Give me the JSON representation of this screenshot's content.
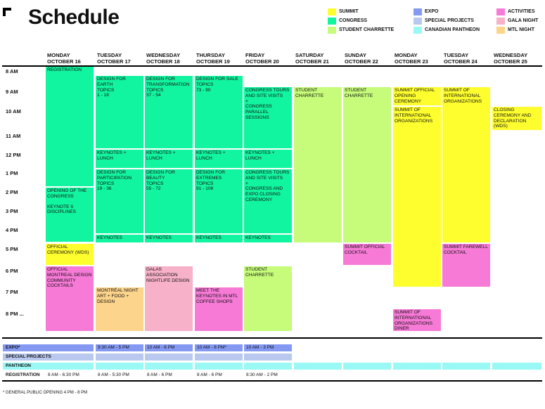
{
  "title": "Schedule",
  "legend": [
    {
      "label": "SUMMIT",
      "color": "#fefe2e"
    },
    {
      "label": "CONGRESS",
      "color": "#12f5a0"
    },
    {
      "label": "STUDENT CHARRETTE",
      "color": "#c6fc7a"
    },
    {
      "label": "EXPO",
      "color": "#8599f2"
    },
    {
      "label": "SPECIAL PROJECTS",
      "color": "#b8c8ef"
    },
    {
      "label": "CANADIAN PANTHEON",
      "color": "#9bf9f5"
    },
    {
      "label": "ACTIVITIES",
      "color": "#f77ad7"
    },
    {
      "label": "GALA NIGHT",
      "color": "#f7b1c8"
    },
    {
      "label": "MTL NIGHT",
      "color": "#fdd48b"
    }
  ],
  "days": [
    {
      "d": "MONDAY",
      "date": "OCTOBER 16"
    },
    {
      "d": "TUESDAY",
      "date": "OCTOBER 17"
    },
    {
      "d": "WEDNESDAY",
      "date": "OCTOBER 18"
    },
    {
      "d": "THURSDAY",
      "date": "OCTOBER 19"
    },
    {
      "d": "FRIDAY",
      "date": "OCTOBER 20"
    },
    {
      "d": "SATURDAY",
      "date": "OCTOBER 21"
    },
    {
      "d": "SUNDAY",
      "date": "OCTOBER 22"
    },
    {
      "d": "MONDAY",
      "date": "OCTOBER 23"
    },
    {
      "d": "TUESDAY",
      "date": "OCTOBER 24"
    },
    {
      "d": "WEDNESDAY",
      "date": "OCTOBER 25"
    }
  ],
  "times": [
    "8 AM",
    "9 AM",
    "10 AM",
    "11 AM",
    "12 PM",
    "1 PM",
    "2 PM",
    "3 PM",
    "4 PM",
    "5 PM",
    "6 PM",
    "7 PM",
    "8 PM ..."
  ],
  "events": {
    "registration": "REGISTRATION",
    "opening": "OPENING OF THE CONGRESS",
    "keynote6": "KEYNOTE 6 DISCIPLINES",
    "official_ceremony": "OFFICIAL CEREMONY (WDS)",
    "official_cocktails": "OFFICIAL MONTREAL DESIGN COMMUNITY COCKTAILS",
    "earth_title": "DESIGN FOR EARTH",
    "earth_topics": "TOPICS",
    "earth_range": "1 - 18",
    "transf_title": "DESIGN FOR TRANSFORMATION",
    "transf_topics": "TOPICS",
    "transf_range": "37 - 54",
    "sale_title": "DESIGN FOR SALE",
    "sale_topics": "TOPICS",
    "sale_range": "73 - 90",
    "tours1_title": "CONGRESS TOURS AND SITE VISITS",
    "tours1_plus": "+",
    "tours1_sub": "CONGRESS PARALLEL SESSIONS",
    "keynotes_lunch": "KEYNOTES + LUNCH",
    "part_title": "DESIGN FOR PARTICIPATION",
    "part_topics": "TOPICS",
    "part_range": "19 - 36",
    "beauty_title": "DESIGN FOR BEAUTY",
    "beauty_topics": "TOPICS",
    "beauty_range": "55 - 72",
    "extremes_title": "DESIGN FOR EXTREMES",
    "extremes_topics": "TOPICS",
    "extremes_range": "91 - 108",
    "tours2_title": "CONGRESS TOURS AND SITE VISITS",
    "tours2_plus": "+",
    "tours2_sub": "CONGRESS AND EXPO CLOSING CEREMONY",
    "keynotes": "KEYNOTES",
    "student_charrette": "STUDENT CHARRETTE",
    "mtl_night": "MONTRÉAL NIGHT ART + FOOD + DESIGN",
    "galas": "GALAS ASSOCIATION NIGHTLIFE DESIGN",
    "meet_keynotes": "MEET THE KEYNOTES IN MTL COFFEE SHOPS",
    "summit_cocktail": "SUMMIT OFFICIAL COCKTAIL",
    "summit_opening": "SUMMIT OFFICIAL OPENING CEREMONY",
    "summit_intl": "SUMMIT OF INTERNATIONAL ORGANIZATIONS",
    "summit_intl_diner": "SUMMIT OF INTERNATIONAL ORGANIZATIONS DINER",
    "summit_intl2": "SUMMIT OF INTERNATIONAL ORGANIZATIONS",
    "farewell": "SUMMIT FAREWELL COCKTAIL",
    "closing": "CLOSING CEREMONY AND DECLARATION (WDS)"
  },
  "bottom": {
    "rows": [
      "EXPO*",
      "SPECIAL PROJECTS",
      "PANTHEON",
      "REGISTRATION"
    ],
    "expo": [
      "9:30 AM - 5 PM",
      "10 AM - 6 PM",
      "10 AM - 8 PM*",
      "10 AM - 3 PM"
    ],
    "registration": [
      "8 AM - 6:30 PM",
      "8 AM - 5:30 PM",
      "8 AM - 6 PM",
      "8 AM - 6 PM",
      "8:30 AM - 2 PM"
    ]
  },
  "footnote": "* GENERAL PUBLIC OPENING 4 PM - 8 PM"
}
